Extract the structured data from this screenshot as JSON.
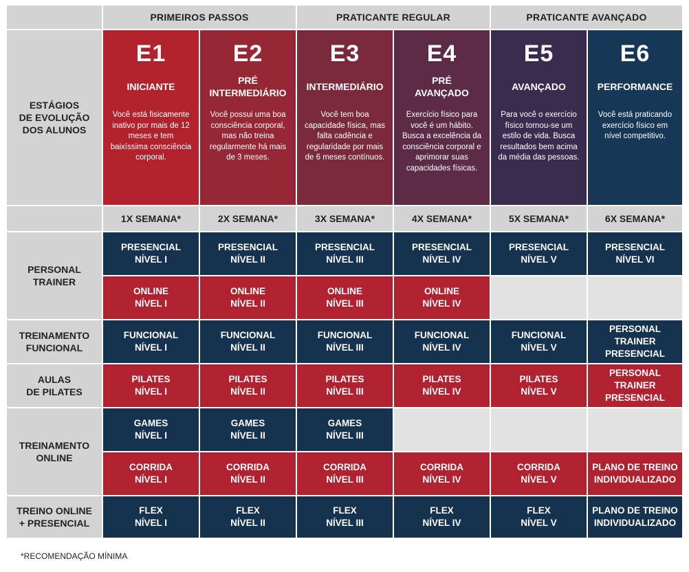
{
  "groups": [
    "PRIMEIROS PASSOS",
    "PRATICANTE REGULAR",
    "PRATICANTE AVANÇADO"
  ],
  "stages_label": "ESTÁGIOS\nDE EVOLUÇÃO\nDOS ALUNOS",
  "stages": [
    {
      "code": "E1",
      "title": "INICIANTE",
      "desc": "Você está fisicamente inativo por mais de 12 meses e tem baixíssima consciência corporal."
    },
    {
      "code": "E2",
      "title": "PRÉ\nINTERMEDIÁRIO",
      "desc": "Você possui uma boa consciência corporal, mas não treina regularmente há mais de 3 meses."
    },
    {
      "code": "E3",
      "title": "INTERMEDIÁRIO",
      "desc": "Você tem boa capacidade física, mas falta cadência e regularidade por mais de 6 meses contínuos."
    },
    {
      "code": "E4",
      "title": "PRÉ\nAVANÇADO",
      "desc": "Exercício físico para você é um hábito. Busca a excelência da consciência corporal e aprimorar suas capacidades físicas."
    },
    {
      "code": "E5",
      "title": "AVANÇADO",
      "desc": "Para você o exercício físico tornou-se um estilo de vida. Busca resultados bem acima da média das pessoas."
    },
    {
      "code": "E6",
      "title": "PERFORMANCE",
      "desc": "Você está praticando exercício físico em nível competitivo."
    }
  ],
  "frequency": [
    "1X SEMANA*",
    "2X SEMANA*",
    "3X SEMANA*",
    "4X SEMANA*",
    "5X SEMANA*",
    "6X SEMANA*"
  ],
  "row_labels": {
    "personal": "PERSONAL\nTRAINER",
    "funcional": "TREINAMENTO\nFUNCIONAL",
    "pilates": "AULAS\nDE PILATES",
    "online": "TREINAMENTO\nONLINE",
    "hibrido": "TREINO ONLINE\n+ PRESENCIAL"
  },
  "rows": {
    "presencial": [
      "PRESENCIAL\nNÍVEL I",
      "PRESENCIAL\nNÍVEL II",
      "PRESENCIAL\nNÍVEL III",
      "PRESENCIAL\nNÍVEL IV",
      "PRESENCIAL\nNÍVEL V",
      "PRESENCIAL\nNÍVEL VI"
    ],
    "online": [
      "ONLINE\nNÍVEL I",
      "ONLINE\nNÍVEL II",
      "ONLINE\nNÍVEL III",
      "ONLINE\nNÍVEL IV"
    ],
    "funcional": [
      "FUNCIONAL\nNÍVEL I",
      "FUNCIONAL\nNÍVEL II",
      "FUNCIONAL\nNÍVEL III",
      "FUNCIONAL\nNÍVEL IV",
      "FUNCIONAL\nNÍVEL V",
      "PERSONAL TRAINER\nPRESENCIAL"
    ],
    "pilates": [
      "PILATES\nNÍVEL I",
      "PILATES\nNÍVEL II",
      "PILATES\nNÍVEL III",
      "PILATES\nNÍVEL IV",
      "PILATES\nNÍVEL V",
      "PERSONAL TRAINER\nPRESENCIAL"
    ],
    "games": [
      "GAMES\nNÍVEL I",
      "GAMES\nNÍVEL II",
      "GAMES\nNÍVEL III"
    ],
    "corrida": [
      "CORRIDA\nNÍVEL I",
      "CORRIDA\nNÍVEL II",
      "CORRIDA\nNÍVEL III",
      "CORRIDA\nNÍVEL IV",
      "CORRIDA\nNÍVEL V",
      "PLANO DE TREINO\nINDIVIDUALIZADO"
    ],
    "flex": [
      "FLEX\nNÍVEL I",
      "FLEX\nNÍVEL II",
      "FLEX\nNÍVEL III",
      "FLEX\nNÍVEL IV",
      "FLEX\nNÍVEL V",
      "PLANO DE TREINO\nINDIVIDUALIZADO"
    ]
  },
  "footnote": "*RECOMENDAÇÃO MÍNIMA",
  "colors": {
    "navy": "#15324f",
    "red": "#b02230",
    "gray": "#d3d3d3"
  }
}
